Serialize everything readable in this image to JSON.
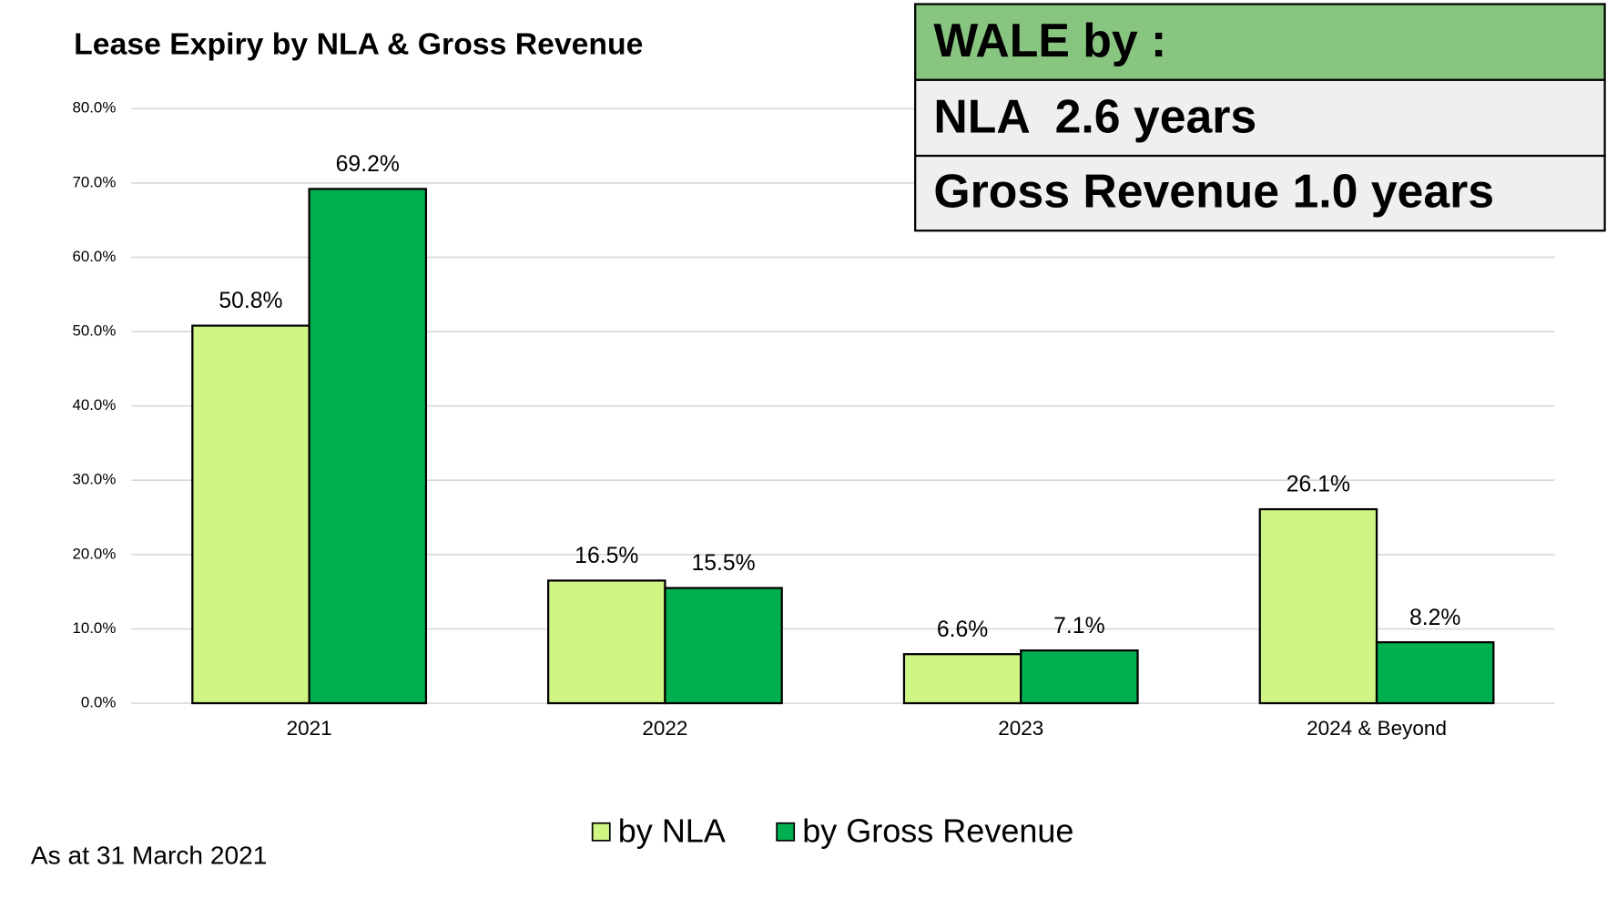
{
  "chart_data": {
    "type": "bar",
    "title": "Lease Expiry by NLA & Gross Revenue",
    "categories": [
      "2021",
      "2022",
      "2023",
      "2024 & Beyond"
    ],
    "series": [
      {
        "name": "by NLA",
        "color": "#cff584",
        "values": [
          50.8,
          16.5,
          6.6,
          26.1
        ],
        "value_labels": [
          "50.8%",
          "16.5%",
          "6.6%",
          "26.1%"
        ]
      },
      {
        "name": "by Gross Revenue",
        "color": "#00b050",
        "values": [
          69.2,
          15.5,
          7.1,
          8.2
        ],
        "value_labels": [
          "69.2%",
          "15.5%",
          "7.1%",
          "8.2%"
        ]
      }
    ],
    "ylim": [
      0,
      80
    ],
    "yticks": [
      {
        "value": 0,
        "label": "0.0%"
      },
      {
        "value": 10,
        "label": "10.0%"
      },
      {
        "value": 20,
        "label": "20.0%"
      },
      {
        "value": 30,
        "label": "30.0%"
      },
      {
        "value": 40,
        "label": "40.0%"
      },
      {
        "value": 50,
        "label": "50.0%"
      },
      {
        "value": 60,
        "label": "60.0%"
      },
      {
        "value": 70,
        "label": "70.0%"
      },
      {
        "value": 80,
        "label": "80.0%"
      }
    ],
    "grid": true,
    "legend": "bottom",
    "footnote": "As at 31 March 2021",
    "info_box": [
      "WALE by :",
      "NLA  2.6 years",
      "Gross Revenue 1.0 years"
    ]
  }
}
